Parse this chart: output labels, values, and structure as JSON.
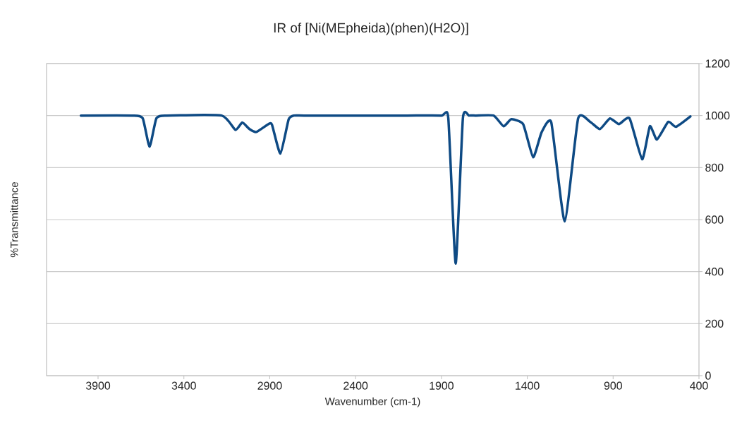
{
  "chart_data": {
    "type": "line",
    "title": "IR of [Ni(MEpheida)(phen)(H2O)]",
    "xlabel": "Wavenumber (cm-1)",
    "ylabel": "%Transmittance",
    "x": [
      4000,
      3700,
      3640,
      3600,
      3560,
      3500,
      3180,
      3100,
      3060,
      3018,
      2978,
      2908,
      2887,
      2838,
      2790,
      2760,
      2700,
      2400,
      2100,
      1900,
      1860,
      1817,
      1775,
      1740,
      1700,
      1596,
      1538,
      1493,
      1424,
      1366,
      1317,
      1260,
      1182,
      1104,
      1034,
      977,
      919,
      866,
      804,
      731,
      686,
      645,
      579,
      534,
      450
    ],
    "series": [
      {
        "color": "#0e4a84",
        "values": [
          1000,
          1000,
          990,
          880,
          990,
          1000,
          1000,
          945,
          973,
          948,
          937,
          967,
          965,
          854,
          985,
          1000,
          1000,
          1000,
          1000,
          1000,
          990,
          431,
          990,
          1000,
          1000,
          1000,
          959,
          986,
          967,
          840,
          935,
          973,
          593,
          989,
          976,
          948,
          989,
          967,
          989,
          832,
          959,
          908,
          976,
          957,
          997
        ]
      }
    ],
    "xlim": [
      4200,
      400
    ],
    "xticks": [
      3900,
      3400,
      2900,
      2400,
      1900,
      1400,
      900,
      400
    ],
    "ylim": [
      0,
      1200
    ],
    "yticks": [
      0,
      200,
      400,
      600,
      800,
      1000,
      1200
    ],
    "grid": "y",
    "marker": "none",
    "line_style": "solid"
  }
}
